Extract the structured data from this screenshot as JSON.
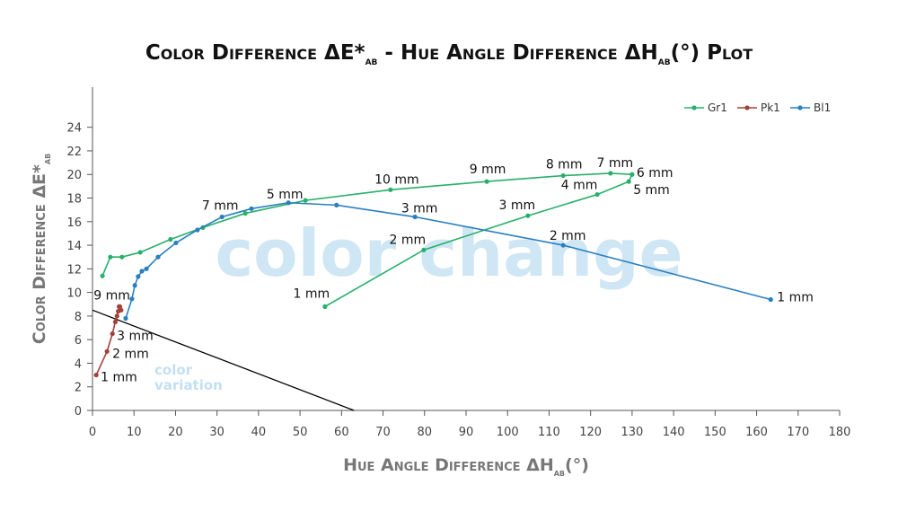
{
  "chart_data": {
    "type": "line",
    "title": [
      "Color Difference ΔE*",
      "ab",
      " - Hue Angle Difference ΔH",
      "ab",
      "(°) Plot"
    ],
    "x_label": [
      "Hue Angle Difference ΔH",
      "ab",
      "(°)"
    ],
    "y_label": [
      "Color Difference ΔE*",
      "ab"
    ],
    "xlim": [
      0,
      180
    ],
    "xticks": [
      0,
      10,
      20,
      30,
      40,
      50,
      60,
      70,
      80,
      90,
      100,
      110,
      120,
      130,
      140,
      150,
      160,
      170,
      180
    ],
    "ylim": [
      0,
      27.4
    ],
    "yticks": [
      0,
      2,
      4,
      6,
      8,
      10,
      12,
      14,
      16,
      18,
      20,
      22,
      24
    ],
    "legend": "top-right",
    "series": [
      {
        "name": "Gr1",
        "color": "#27b06a",
        "x": [
          56.0,
          79.8,
          104.9,
          121.6,
          129.2,
          130.0,
          124.8,
          113.4,
          95.0,
          71.8,
          51.3,
          36.8,
          26.6,
          18.8,
          11.5,
          7.1,
          4.3,
          2.4
        ],
        "values": [
          8.8,
          13.6,
          16.5,
          18.3,
          19.4,
          20.0,
          20.1,
          19.9,
          19.4,
          18.7,
          17.8,
          16.7,
          15.5,
          14.5,
          13.4,
          13.0,
          13.0,
          11.4
        ],
        "point_labels": [
          "1 mm",
          "2 mm",
          "3 mm",
          "4 mm",
          "5 mm",
          "6 mm",
          "7 mm",
          "8 mm",
          "9 mm",
          "10 mm",
          null,
          null,
          null,
          null,
          null,
          null,
          null,
          null
        ]
      },
      {
        "name": "Pk1",
        "color": "#a3413a",
        "x": [
          0.9,
          3.5,
          4.8,
          5.5,
          5.9,
          6.2,
          6.6,
          6.9,
          6.4
        ],
        "values": [
          3.0,
          5.0,
          6.5,
          7.5,
          8.0,
          8.4,
          8.8,
          8.5,
          8.8
        ],
        "point_labels": [
          "1 mm",
          "2 mm",
          "3 mm",
          null,
          null,
          null,
          null,
          null,
          "9 mm"
        ]
      },
      {
        "name": "Bl1",
        "color": "#2a7fc1",
        "x": [
          163.4,
          113.4,
          77.7,
          58.8,
          47.2,
          38.3,
          31.2,
          25.3,
          20.1,
          15.8,
          13.0,
          11.9,
          11.0,
          10.2,
          9.5,
          8.0
        ],
        "values": [
          9.4,
          14.0,
          16.4,
          17.4,
          17.6,
          17.1,
          16.4,
          15.3,
          14.2,
          13.0,
          12.0,
          11.8,
          11.35,
          10.6,
          9.45,
          7.8
        ],
        "point_labels": [
          "1 mm",
          "2 mm",
          "3 mm",
          null,
          "5 mm",
          null,
          "7 mm",
          null,
          null,
          null,
          null,
          null,
          null,
          null,
          null,
          null
        ]
      }
    ],
    "reference_line": {
      "x": [
        0,
        63
      ],
      "values": [
        8.5,
        0
      ],
      "color": "#000000"
    },
    "annotations": [
      "color change",
      "color",
      "variation"
    ]
  }
}
